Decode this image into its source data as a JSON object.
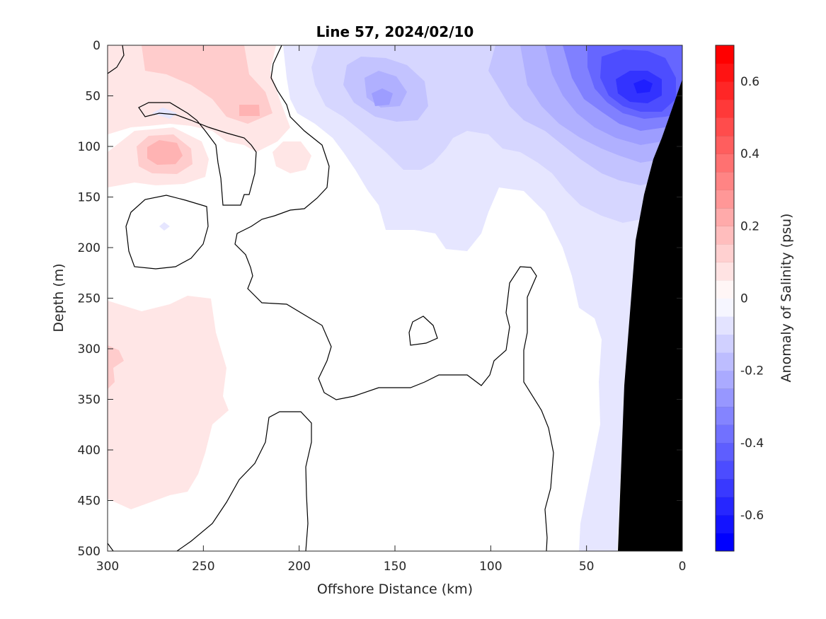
{
  "chart_data": {
    "type": "heatmap",
    "title": "Line 57, 2024/02/10",
    "xlabel": "Offshore Distance (km)",
    "ylabel": "Depth (m)",
    "xlim": [
      300,
      0
    ],
    "ylim": [
      500,
      0
    ],
    "x_ticks": [
      "300",
      "250",
      "200",
      "150",
      "100",
      "50",
      "0"
    ],
    "y_ticks": [
      "0",
      "50",
      "100",
      "150",
      "200",
      "250",
      "300",
      "350",
      "400",
      "450",
      "500"
    ],
    "colorbar": {
      "label": "Anomaly of Salinity (psu)",
      "range": [
        -0.7,
        0.7
      ],
      "step": 0.05,
      "tick_labels": [
        "0.6",
        "0.4",
        "0.2",
        "0",
        "-0.2",
        "-0.4",
        "-0.6"
      ],
      "positive_color": "#ff0000",
      "negative_color": "#0000ff",
      "zero_color": "#ffffff"
    },
    "features": [
      {
        "name": "positive-anomaly-offshore-surface",
        "range_km": [
          300,
          180
        ],
        "depth_m": [
          0,
          160
        ],
        "peak": 0.15
      },
      {
        "name": "positive-anomaly-offshore-deep",
        "range_km": [
          300,
          240
        ],
        "depth_m": [
          250,
          450
        ],
        "peak": 0.1
      },
      {
        "name": "negative-anomaly-nearshore-surface",
        "range_km": [
          190,
          0
        ],
        "depth_m": [
          0,
          220
        ],
        "peak": -0.45
      },
      {
        "name": "negative-anomaly-slope",
        "range_km": [
          55,
          30
        ],
        "depth_m": [
          200,
          500
        ],
        "peak": -0.05
      }
    ],
    "seafloor_color": "#000000"
  }
}
